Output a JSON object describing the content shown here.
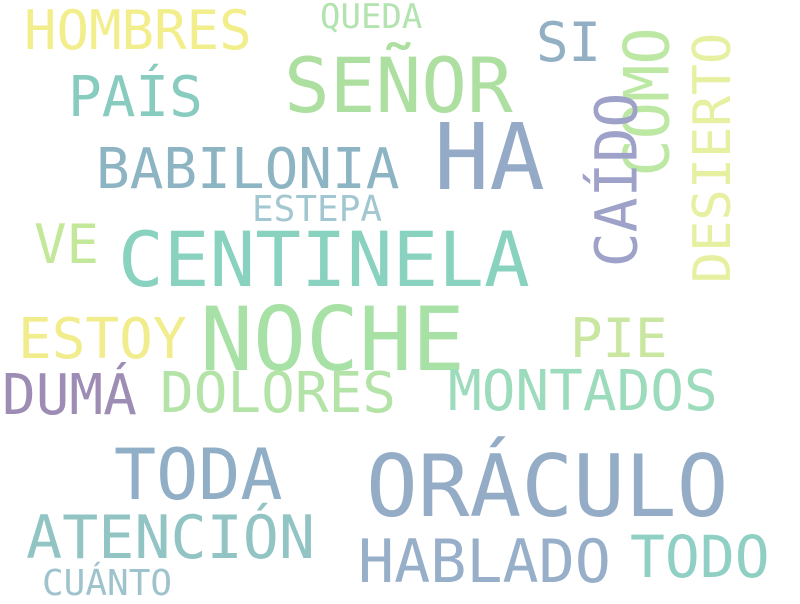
{
  "words": {
    "hombres": {
      "text": "HOMBRES",
      "color": "#f3ee8c"
    },
    "queda": {
      "text": "QUEDA",
      "color": "#b3e3ae"
    },
    "senor": {
      "text": "SEÑOR",
      "color": "#addfa0"
    },
    "si": {
      "text": "SI",
      "color": "#93afc4"
    },
    "como": {
      "text": "COMO",
      "color": "#bde8a4"
    },
    "desierto": {
      "text": "DESIERTO",
      "color": "#e7f0a0"
    },
    "pais": {
      "text": "PAÍS",
      "color": "#88ccc0"
    },
    "ha": {
      "text": "HA",
      "color": "#94aac7"
    },
    "babilonia": {
      "text": "BABILONIA",
      "color": "#8cb4c3"
    },
    "caido": {
      "text": "CAÍDO",
      "color": "#9ea1c8"
    },
    "estepa": {
      "text": "ESTEPA",
      "color": "#a2c7d1"
    },
    "ve": {
      "text": "VE",
      "color": "#c4e89a"
    },
    "centinela": {
      "text": "CENTINELA",
      "color": "#88d2bf"
    },
    "estoy": {
      "text": "ESTOY",
      "color": "#f1ec8c"
    },
    "noche": {
      "text": "NOCHE",
      "color": "#a7e1a6"
    },
    "pie": {
      "text": "PIE",
      "color": "#c9e7a1"
    },
    "duma": {
      "text": "DUMÁ",
      "color": "#9d8cb4"
    },
    "dolores": {
      "text": "DOLORES",
      "color": "#b3e3a6"
    },
    "montados": {
      "text": "MONTADOS",
      "color": "#9ddbbd"
    },
    "toda": {
      "text": "TODA",
      "color": "#90aec6"
    },
    "oraculo": {
      "text": "ORÁCULO",
      "color": "#95acc7"
    },
    "atencion": {
      "text": "ATENCIÓN",
      "color": "#92c4c4"
    },
    "hablado": {
      "text": "HABLADO",
      "color": "#97afc8"
    },
    "todo": {
      "text": "TODO",
      "color": "#8fcfc4"
    },
    "cuanto": {
      "text": "CUÁNTO",
      "color": "#9fc3cc"
    }
  }
}
